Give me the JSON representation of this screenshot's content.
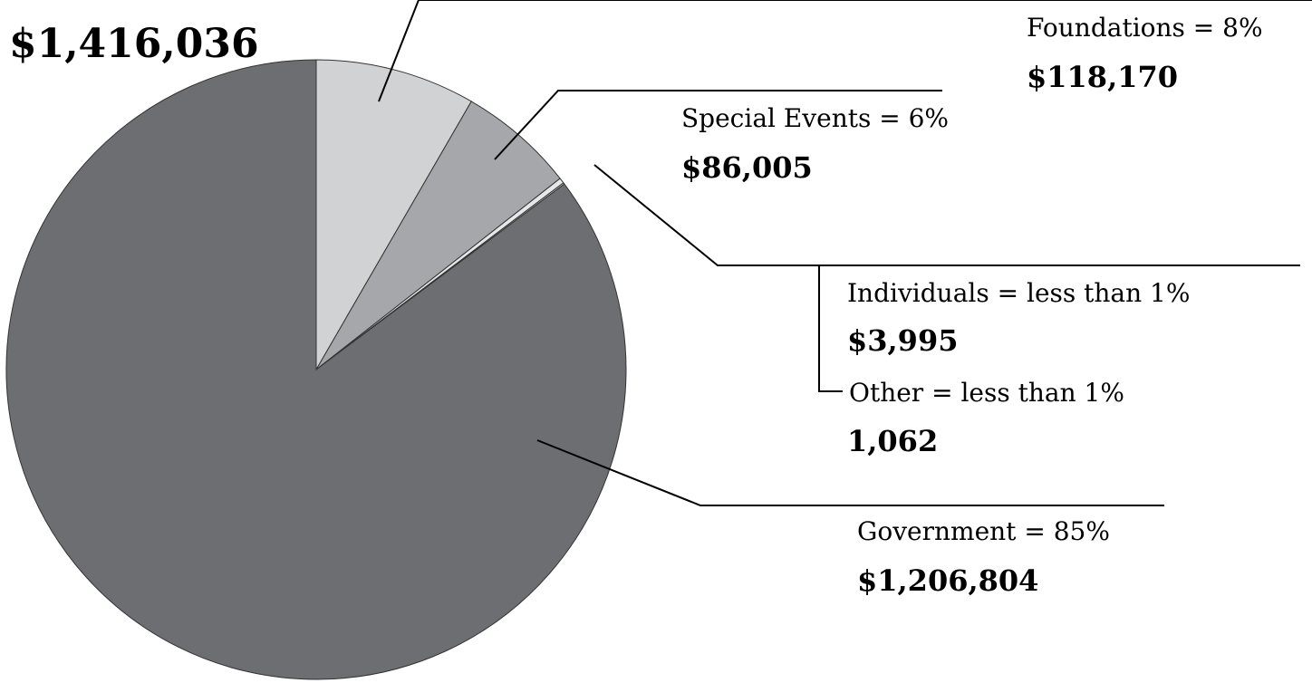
{
  "chart_data": {
    "type": "pie",
    "title": "$1,416,036",
    "slices": [
      {
        "label": "Foundations = 8%",
        "amount": "$118,170",
        "value": 118170,
        "color": "#d1d2d4"
      },
      {
        "label": "Special Events = 6%",
        "amount": "$86,005",
        "value": 86005,
        "color": "#a6a7aa"
      },
      {
        "label": "Individuals = less than 1%",
        "amount": "$3,995",
        "value": 3995,
        "color": "#e6e7e8"
      },
      {
        "label": "Other =  less than 1%",
        "amount": "1,062",
        "value": 1062,
        "color": "#f2f2f2"
      },
      {
        "label": "Government = 85%",
        "amount": "$1,206,804",
        "value": 1206804,
        "color": "#6d6e71"
      }
    ],
    "legend": "none"
  }
}
